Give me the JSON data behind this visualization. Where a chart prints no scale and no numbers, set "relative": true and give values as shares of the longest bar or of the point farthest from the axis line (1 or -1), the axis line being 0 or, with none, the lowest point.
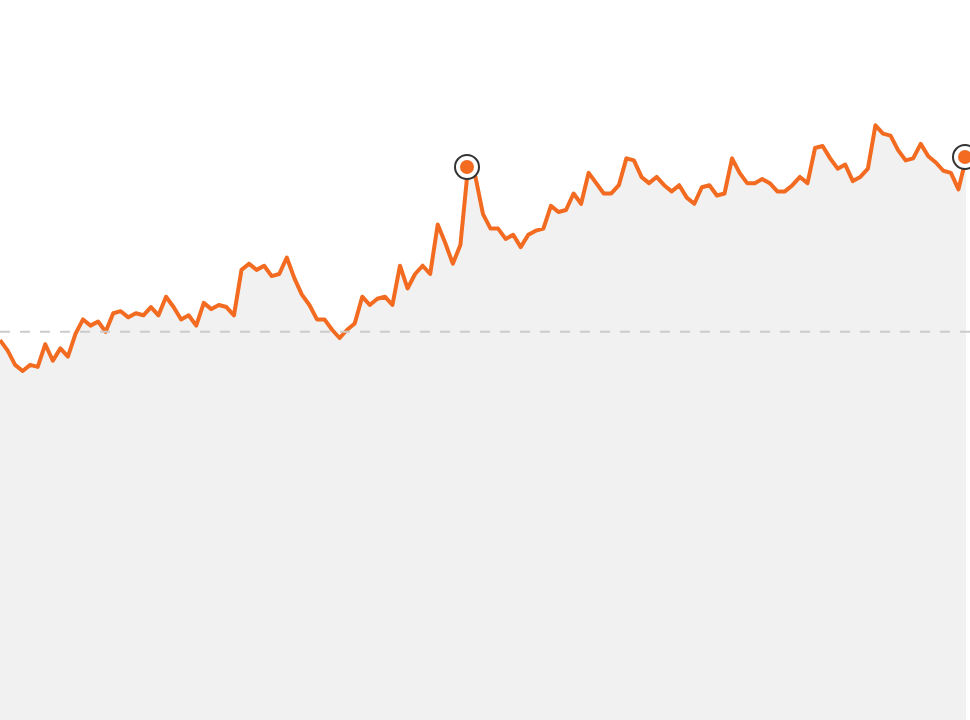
{
  "chart_data": {
    "type": "area",
    "relative": true,
    "marker": "none",
    "line_style": "solid",
    "color": "#f26b21",
    "categories": [
      null,
      null,
      null,
      null,
      null,
      null,
      null,
      null,
      null,
      null,
      null,
      null,
      null,
      null,
      null,
      null,
      null,
      null,
      null,
      null,
      null,
      null,
      null,
      null,
      null,
      null,
      null,
      null,
      null,
      null,
      null,
      null,
      null,
      null,
      null,
      null,
      null,
      null,
      null,
      null,
      null,
      null,
      null,
      null,
      null,
      null,
      null,
      null,
      null,
      null,
      null,
      null,
      null,
      null,
      null,
      null,
      null,
      null,
      null,
      null,
      null,
      null,
      null,
      null,
      null,
      null,
      null,
      null,
      null,
      null,
      null,
      null,
      null,
      null,
      null,
      null,
      null,
      null,
      null,
      null,
      null,
      null,
      null,
      null,
      null,
      null,
      null,
      null,
      null,
      null,
      null,
      null,
      null,
      null,
      null,
      null,
      null,
      null,
      null,
      null,
      null,
      null,
      null,
      null,
      null,
      null,
      null,
      null,
      null,
      null,
      null,
      null,
      null,
      null,
      null,
      null,
      null,
      null,
      null,
      null,
      null,
      null,
      null,
      null,
      null,
      null,
      null,
      null,
      null
    ],
    "values": [
      -0.04,
      -0.09,
      -0.16,
      -0.19,
      -0.16,
      -0.17,
      -0.06,
      -0.14,
      -0.08,
      -0.12,
      -0.01,
      0.06,
      0.03,
      0.05,
      0,
      0.09,
      0.1,
      0.07,
      0.09,
      0.08,
      0.12,
      0.08,
      0.17,
      0.12,
      0.06,
      0.08,
      0.03,
      0.14,
      0.11,
      0.13,
      0.12,
      0.08,
      0.3,
      0.33,
      0.3,
      0.32,
      0.27,
      0.28,
      0.36,
      0.26,
      0.18,
      0.13,
      0.06,
      0.06,
      0.01,
      -0.03,
      0.01,
      0.04,
      0.17,
      0.13,
      0.16,
      0.17,
      0.13,
      0.32,
      0.21,
      0.28,
      0.32,
      0.28,
      0.52,
      0.43,
      0.33,
      0.42,
      0.79,
      0.75,
      0.57,
      0.5,
      0.5,
      0.45,
      0.47,
      0.41,
      0.47,
      0.49,
      0.5,
      0.61,
      0.58,
      0.59,
      0.67,
      0.62,
      0.77,
      0.72,
      0.67,
      0.67,
      0.71,
      0.84,
      0.83,
      0.75,
      0.72,
      0.75,
      0.71,
      0.68,
      0.71,
      0.65,
      0.62,
      0.7,
      0.71,
      0.66,
      0.67,
      0.84,
      0.77,
      0.72,
      0.72,
      0.74,
      0.72,
      0.68,
      0.68,
      0.71,
      0.75,
      0.72,
      0.89,
      0.9,
      0.84,
      0.79,
      0.81,
      0.73,
      0.75,
      0.79,
      1,
      0.96,
      0.95,
      0.88,
      0.83,
      0.84,
      0.91,
      0.85,
      0.82,
      0.78,
      0.77,
      0.69,
      0.84
    ],
    "ref_lines": [
      {
        "axis": "y",
        "value": 0,
        "color": "#cccccc",
        "line_style": "dashed"
      }
    ]
  }
}
